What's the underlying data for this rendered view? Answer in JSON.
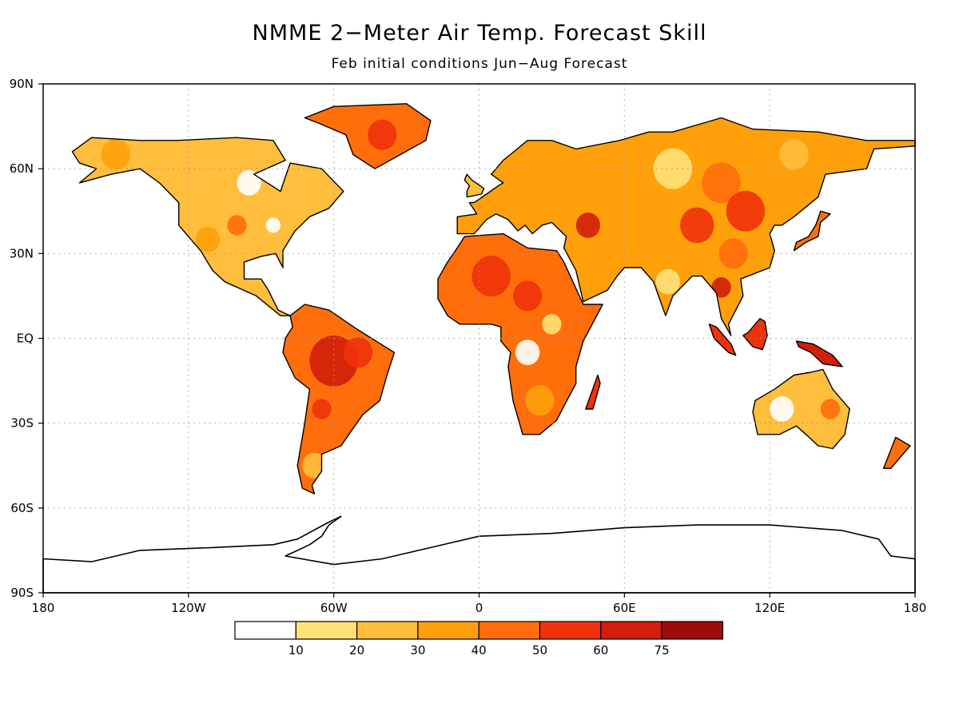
{
  "title": "NMME 2−Meter Air Temp. Forecast Skill",
  "subtitle": "Feb initial conditions   Jun−Aug Forecast",
  "axes": {
    "lat_ticks": [
      {
        "label": "90N",
        "lat": 90
      },
      {
        "label": "60N",
        "lat": 60
      },
      {
        "label": "30N",
        "lat": 30
      },
      {
        "label": "EQ",
        "lat": 0
      },
      {
        "label": "30S",
        "lat": -30
      },
      {
        "label": "60S",
        "lat": -60
      },
      {
        "label": "90S",
        "lat": -90
      }
    ],
    "lon_ticks": [
      {
        "label": "180",
        "lon": -180
      },
      {
        "label": "120W",
        "lon": -120
      },
      {
        "label": "60W",
        "lon": -60
      },
      {
        "label": "0",
        "lon": 0
      },
      {
        "label": "60E",
        "lon": 60
      },
      {
        "label": "120E",
        "lon": 120
      },
      {
        "label": "180",
        "lon": 180
      }
    ],
    "gridlines": "dotted"
  },
  "colorbar": {
    "boundaries": [
      "10",
      "20",
      "30",
      "40",
      "50",
      "60",
      "75"
    ],
    "colors": [
      "#ffffff",
      "#ffe178",
      "#ffbe3c",
      "#ffa00a",
      "#ff6e0a",
      "#f0320a",
      "#d21e0a",
      "#a00a0a"
    ]
  },
  "map_data": {
    "projection": "equirectangular",
    "continents": [
      {
        "name": "North America",
        "base_color": "#ffbe3c",
        "outline": [
          [
            -168,
            66
          ],
          [
            -160,
            71
          ],
          [
            -140,
            70
          ],
          [
            -125,
            70
          ],
          [
            -100,
            71
          ],
          [
            -85,
            70
          ],
          [
            -80,
            63
          ],
          [
            -93,
            58
          ],
          [
            -82,
            52
          ],
          [
            -78,
            62
          ],
          [
            -65,
            60
          ],
          [
            -56,
            52
          ],
          [
            -62,
            46
          ],
          [
            -70,
            43
          ],
          [
            -76,
            38
          ],
          [
            -81,
            31
          ],
          [
            -81,
            25
          ],
          [
            -84,
            30
          ],
          [
            -90,
            29
          ],
          [
            -97,
            27
          ],
          [
            -97,
            21
          ],
          [
            -90,
            21
          ],
          [
            -87,
            17
          ],
          [
            -83,
            10
          ],
          [
            -78,
            8
          ],
          [
            -82,
            8
          ],
          [
            -92,
            15
          ],
          [
            -105,
            20
          ],
          [
            -110,
            24
          ],
          [
            -115,
            31
          ],
          [
            -118,
            34
          ],
          [
            -124,
            40
          ],
          [
            -124,
            48
          ],
          [
            -132,
            55
          ],
          [
            -140,
            60
          ],
          [
            -152,
            58
          ],
          [
            -165,
            55
          ],
          [
            -158,
            60
          ],
          [
            -165,
            62
          ]
        ]
      },
      {
        "name": "Greenland",
        "base_color": "#ff6e0a",
        "outline": [
          [
            -72,
            78
          ],
          [
            -60,
            82
          ],
          [
            -30,
            83
          ],
          [
            -20,
            77
          ],
          [
            -22,
            70
          ],
          [
            -43,
            60
          ],
          [
            -52,
            65
          ],
          [
            -55,
            72
          ],
          [
            -66,
            76
          ]
        ]
      },
      {
        "name": "South America",
        "base_color": "#ff6e0a",
        "outline": [
          [
            -78,
            8
          ],
          [
            -72,
            12
          ],
          [
            -62,
            10
          ],
          [
            -50,
            3
          ],
          [
            -35,
            -5
          ],
          [
            -38,
            -13
          ],
          [
            -41,
            -22
          ],
          [
            -48,
            -27
          ],
          [
            -53,
            -33
          ],
          [
            -57,
            -38
          ],
          [
            -65,
            -41
          ],
          [
            -65,
            -47
          ],
          [
            -69,
            -52
          ],
          [
            -68,
            -55
          ],
          [
            -73,
            -53
          ],
          [
            -75,
            -45
          ],
          [
            -72,
            -30
          ],
          [
            -70,
            -18
          ],
          [
            -76,
            -14
          ],
          [
            -81,
            -5
          ],
          [
            -80,
            0
          ],
          [
            -77,
            4
          ]
        ]
      },
      {
        "name": "Africa",
        "base_color": "#ff6e0a",
        "outline": [
          [
            -6,
            36
          ],
          [
            10,
            37
          ],
          [
            20,
            32
          ],
          [
            32,
            31
          ],
          [
            35,
            27
          ],
          [
            43,
            12
          ],
          [
            51,
            12
          ],
          [
            43,
            -1
          ],
          [
            40,
            -10
          ],
          [
            40,
            -16
          ],
          [
            35,
            -24
          ],
          [
            32,
            -29
          ],
          [
            25,
            -34
          ],
          [
            18,
            -34
          ],
          [
            14,
            -22
          ],
          [
            12,
            -10
          ],
          [
            13,
            -5
          ],
          [
            9,
            -1
          ],
          [
            9,
            4
          ],
          [
            5,
            5
          ],
          [
            -8,
            5
          ],
          [
            -13,
            8
          ],
          [
            -17,
            14
          ],
          [
            -17,
            21
          ],
          [
            -13,
            27
          ],
          [
            -9,
            32
          ]
        ]
      },
      {
        "name": "Eurasia",
        "base_color": "#ffa00a",
        "outline": [
          [
            -9,
            43
          ],
          [
            -9,
            37
          ],
          [
            -2,
            37
          ],
          [
            3,
            42
          ],
          [
            7,
            44
          ],
          [
            12,
            42
          ],
          [
            16,
            38
          ],
          [
            19,
            40
          ],
          [
            22,
            37
          ],
          [
            26,
            40
          ],
          [
            30,
            41
          ],
          [
            36,
            36
          ],
          [
            35,
            32
          ],
          [
            40,
            24
          ],
          [
            43,
            13
          ],
          [
            53,
            17
          ],
          [
            57,
            22
          ],
          [
            60,
            25
          ],
          [
            67,
            25
          ],
          [
            72,
            20
          ],
          [
            77,
            8
          ],
          [
            80,
            15
          ],
          [
            88,
            22
          ],
          [
            92,
            22
          ],
          [
            98,
            16
          ],
          [
            100,
            7
          ],
          [
            104,
            1
          ],
          [
            103,
            5
          ],
          [
            106,
            10
          ],
          [
            109,
            15
          ],
          [
            108,
            21
          ],
          [
            120,
            25
          ],
          [
            122,
            31
          ],
          [
            120,
            37
          ],
          [
            122,
            40
          ],
          [
            125,
            40
          ],
          [
            130,
            43
          ],
          [
            140,
            50
          ],
          [
            143,
            58
          ],
          [
            160,
            60
          ],
          [
            163,
            67
          ],
          [
            180,
            68
          ],
          [
            180,
            70
          ],
          [
            160,
            70
          ],
          [
            140,
            73
          ],
          [
            113,
            74
          ],
          [
            100,
            78
          ],
          [
            80,
            73
          ],
          [
            70,
            73
          ],
          [
            58,
            70
          ],
          [
            40,
            67
          ],
          [
            30,
            70
          ],
          [
            20,
            70
          ],
          [
            10,
            63
          ],
          [
            5,
            58
          ],
          [
            10,
            55
          ],
          [
            8,
            54
          ],
          [
            3,
            51
          ],
          [
            -2,
            48
          ],
          [
            -4,
            48
          ],
          [
            -1,
            44
          ]
        ]
      },
      {
        "name": "Great Britain",
        "base_color": "#ffbe3c",
        "outline": [
          [
            -5,
            50
          ],
          [
            1,
            51
          ],
          [
            2,
            53
          ],
          [
            -3,
            56
          ],
          [
            -5,
            58
          ],
          [
            -6,
            56
          ],
          [
            -4,
            54
          ],
          [
            -5,
            52
          ]
        ]
      },
      {
        "name": "Japan",
        "base_color": "#ff6e0a",
        "outline": [
          [
            130,
            31
          ],
          [
            135,
            34
          ],
          [
            140,
            36
          ],
          [
            141,
            41
          ],
          [
            145,
            44
          ],
          [
            141,
            45
          ],
          [
            139,
            40
          ],
          [
            136,
            36
          ],
          [
            131,
            34
          ]
        ]
      },
      {
        "name": "Madagascar",
        "base_color": "#f0320a",
        "outline": [
          [
            44,
            -25
          ],
          [
            49,
            -13
          ],
          [
            50,
            -16
          ],
          [
            47,
            -25
          ]
        ]
      },
      {
        "name": "Borneo",
        "base_color": "#f0320a",
        "outline": [
          [
            109,
            1
          ],
          [
            113,
            -3
          ],
          [
            117,
            -4
          ],
          [
            119,
            1
          ],
          [
            118,
            6
          ],
          [
            116,
            7
          ],
          [
            111,
            2
          ]
        ]
      },
      {
        "name": "Sumatra",
        "base_color": "#f0320a",
        "outline": [
          [
            95,
            5
          ],
          [
            98,
            4
          ],
          [
            104,
            -2
          ],
          [
            106,
            -6
          ],
          [
            103,
            -5
          ],
          [
            97,
            0
          ]
        ]
      },
      {
        "name": "New Guinea",
        "base_color": "#d21e0a",
        "outline": [
          [
            131,
            -1
          ],
          [
            138,
            -2
          ],
          [
            146,
            -6
          ],
          [
            150,
            -10
          ],
          [
            142,
            -9
          ],
          [
            137,
            -5
          ],
          [
            132,
            -3
          ]
        ]
      },
      {
        "name": "Australia",
        "base_color": "#ffbe3c",
        "outline": [
          [
            114,
            -22
          ],
          [
            122,
            -18
          ],
          [
            130,
            -13
          ],
          [
            137,
            -12
          ],
          [
            142,
            -11
          ],
          [
            146,
            -18
          ],
          [
            153,
            -25
          ],
          [
            151,
            -34
          ],
          [
            146,
            -39
          ],
          [
            140,
            -38
          ],
          [
            135,
            -34
          ],
          [
            131,
            -31
          ],
          [
            124,
            -34
          ],
          [
            115,
            -34
          ],
          [
            113,
            -26
          ]
        ]
      },
      {
        "name": "New Zealand",
        "base_color": "#ff6e0a",
        "outline": [
          [
            172,
            -35
          ],
          [
            178,
            -38
          ],
          [
            174,
            -42
          ],
          [
            170,
            -46
          ],
          [
            167,
            -46
          ]
        ]
      },
      {
        "name": "Antarctica",
        "base_color": "#ffffff",
        "outline": [
          [
            -180,
            -78
          ],
          [
            -160,
            -79
          ],
          [
            -140,
            -75
          ],
          [
            -110,
            -74
          ],
          [
            -85,
            -73
          ],
          [
            -75,
            -71
          ],
          [
            -62,
            -65
          ],
          [
            -57,
            -63
          ],
          [
            -62,
            -66
          ],
          [
            -65,
            -70
          ],
          [
            -70,
            -73
          ],
          [
            -80,
            -77
          ],
          [
            -60,
            -80
          ],
          [
            -40,
            -78
          ],
          [
            -20,
            -74
          ],
          [
            0,
            -70
          ],
          [
            30,
            -69
          ],
          [
            60,
            -67
          ],
          [
            90,
            -66
          ],
          [
            120,
            -66
          ],
          [
            150,
            -68
          ],
          [
            165,
            -71
          ],
          [
            170,
            -77
          ],
          [
            180,
            -78
          ],
          [
            180,
            -90
          ],
          [
            -180,
            -90
          ]
        ]
      }
    ],
    "skill_patches": [
      {
        "lon": -100,
        "lat": 40,
        "color": "#ff6e0a",
        "r": 4
      },
      {
        "lon": -112,
        "lat": 35,
        "color": "#ffa00a",
        "r": 5
      },
      {
        "lon": -95,
        "lat": 55,
        "color": "#ffffff",
        "r": 5
      },
      {
        "lon": -85,
        "lat": 40,
        "color": "#ffffff",
        "r": 3
      },
      {
        "lon": -150,
        "lat": 65,
        "color": "#ffa00a",
        "r": 6
      },
      {
        "lon": -40,
        "lat": 72,
        "color": "#f0320a",
        "r": 6
      },
      {
        "lon": -60,
        "lat": -8,
        "color": "#d21e0a",
        "r": 10
      },
      {
        "lon": -50,
        "lat": -5,
        "color": "#f0320a",
        "r": 6
      },
      {
        "lon": -65,
        "lat": -25,
        "color": "#f0320a",
        "r": 4
      },
      {
        "lon": -68,
        "lat": -45,
        "color": "#ffbe3c",
        "r": 5
      },
      {
        "lon": 5,
        "lat": 22,
        "color": "#f0320a",
        "r": 8
      },
      {
        "lon": 20,
        "lat": 15,
        "color": "#f0320a",
        "r": 6
      },
      {
        "lon": 20,
        "lat": -5,
        "color": "#ffffff",
        "r": 5
      },
      {
        "lon": 25,
        "lat": -22,
        "color": "#ffa00a",
        "r": 6
      },
      {
        "lon": 30,
        "lat": 5,
        "color": "#ffe178",
        "r": 4
      },
      {
        "lon": 40,
        "lat": 55,
        "color": "#ffa00a",
        "r": 10
      },
      {
        "lon": 80,
        "lat": 60,
        "color": "#ffe178",
        "r": 8
      },
      {
        "lon": 100,
        "lat": 55,
        "color": "#ff6e0a",
        "r": 8
      },
      {
        "lon": 110,
        "lat": 45,
        "color": "#f0320a",
        "r": 8
      },
      {
        "lon": 90,
        "lat": 40,
        "color": "#f0320a",
        "r": 7
      },
      {
        "lon": 45,
        "lat": 40,
        "color": "#d21e0a",
        "r": 5
      },
      {
        "lon": 105,
        "lat": 30,
        "color": "#ff6e0a",
        "r": 6
      },
      {
        "lon": 100,
        "lat": 18,
        "color": "#d21e0a",
        "r": 4
      },
      {
        "lon": 78,
        "lat": 20,
        "color": "#ffe178",
        "r": 5
      },
      {
        "lon": 130,
        "lat": 65,
        "color": "#ffbe3c",
        "r": 6
      },
      {
        "lon": 125,
        "lat": -25,
        "color": "#ffffff",
        "r": 5
      },
      {
        "lon": 145,
        "lat": -25,
        "color": "#ff6e0a",
        "r": 4
      }
    ]
  }
}
